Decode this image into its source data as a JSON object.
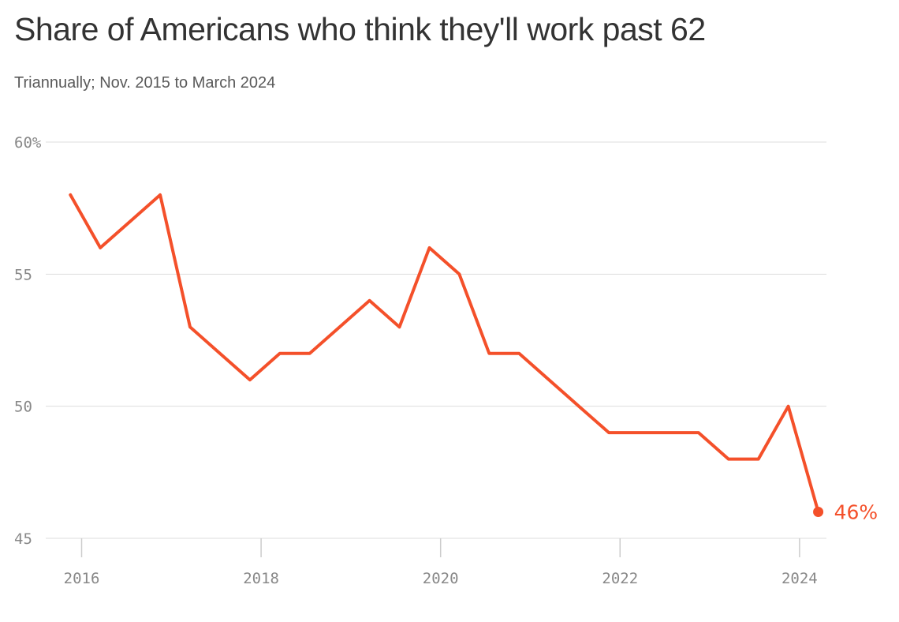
{
  "chart_data": {
    "type": "line",
    "title": "Share of Americans who think they'll work past 62",
    "subtitle": "Triannually; Nov. 2015 to March 2024",
    "xlabel": "",
    "ylabel": "",
    "ylim": [
      45,
      60
    ],
    "xlim": [
      2015.6,
      2024.3
    ],
    "y_ticks": [
      {
        "value": 60,
        "label": "60%"
      },
      {
        "value": 55,
        "label": "55"
      },
      {
        "value": 50,
        "label": "50"
      },
      {
        "value": 45,
        "label": "45"
      }
    ],
    "x_ticks": [
      {
        "value": 2016,
        "label": "2016"
      },
      {
        "value": 2018,
        "label": "2018"
      },
      {
        "value": 2020,
        "label": "2020"
      },
      {
        "value": 2022,
        "label": "2022"
      },
      {
        "value": 2024,
        "label": "2024"
      }
    ],
    "grid": true,
    "color": "#f4502a",
    "series": [
      {
        "points": [
          {
            "x": "Nov. 2015",
            "y": 58
          },
          {
            "x": "Mar. 2016",
            "y": 56
          },
          {
            "x": "Jul. 2016",
            "y": 57
          },
          {
            "x": "Nov. 2016",
            "y": 58
          },
          {
            "x": "Mar. 2017",
            "y": 53
          },
          {
            "x": "Jul. 2017",
            "y": 52
          },
          {
            "x": "Nov. 2017",
            "y": 51
          },
          {
            "x": "Mar. 2018",
            "y": 52
          },
          {
            "x": "Jul. 2018",
            "y": 52
          },
          {
            "x": "Nov. 2018",
            "y": 53
          },
          {
            "x": "Mar. 2019",
            "y": 54
          },
          {
            "x": "Jul. 2019",
            "y": 53
          },
          {
            "x": "Nov. 2019",
            "y": 56
          },
          {
            "x": "Mar. 2020",
            "y": 55
          },
          {
            "x": "Jul. 2020",
            "y": 52
          },
          {
            "x": "Nov. 2020",
            "y": 52
          },
          {
            "x": "Mar. 2021",
            "y": 51
          },
          {
            "x": "Jul. 2021",
            "y": 50
          },
          {
            "x": "Nov. 2021",
            "y": 49
          },
          {
            "x": "Mar. 2022",
            "y": 49
          },
          {
            "x": "Jul. 2022",
            "y": 49
          },
          {
            "x": "Nov. 2022",
            "y": 49
          },
          {
            "x": "Mar. 2023",
            "y": 48
          },
          {
            "x": "Jul. 2023",
            "y": 48
          },
          {
            "x": "Nov. 2023",
            "y": 50
          },
          {
            "x": "Mar. 2024",
            "y": 46
          }
        ]
      }
    ],
    "end_label": "46%"
  }
}
